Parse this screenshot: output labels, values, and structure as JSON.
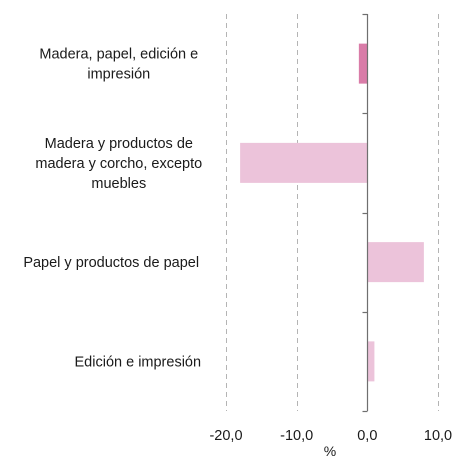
{
  "chart_data": {
    "type": "bar",
    "orientation": "horizontal",
    "categories": [
      [
        "Madera, papel, edición e",
        "impresión"
      ],
      [
        "Madera y productos de",
        "madera y corcho, excepto",
        "muebles"
      ],
      [
        "Papel y productos de papel"
      ],
      [
        "Edición e impresión"
      ]
    ],
    "values": [
      -1.2,
      -18.0,
      8.0,
      1.0
    ],
    "highlight_index": 0,
    "colors": {
      "bar": "#ecc3da",
      "bar_highlight": "#d97ca8",
      "grid": "#b4b4b4",
      "axis": "#6f6f6f"
    },
    "xlim": [
      -20,
      10
    ],
    "xticks": [
      -20,
      -10,
      0,
      10
    ],
    "tick_labels": [
      "-20,0",
      "-10,0",
      "0,0",
      "10,0"
    ],
    "xlabel": "%",
    "ylabel": "",
    "title": "",
    "grid": "vertical dashed",
    "legend": "none"
  }
}
